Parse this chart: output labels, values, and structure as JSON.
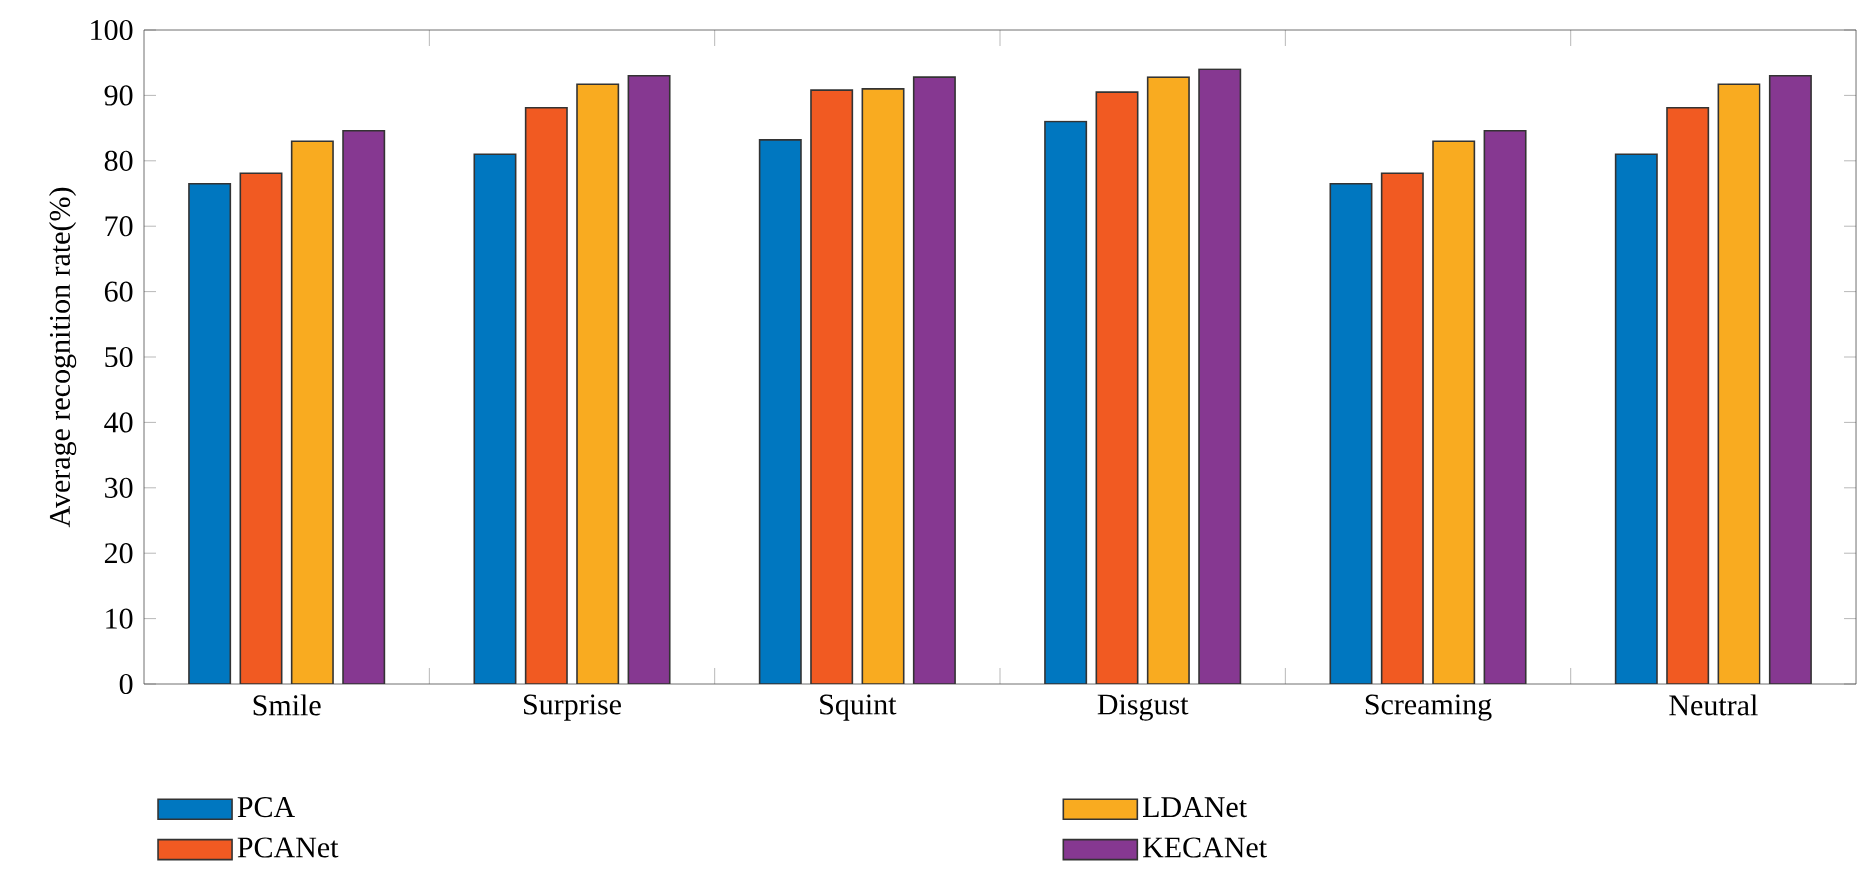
{
  "chart_data": {
    "type": "bar",
    "ylabel": "Average recognition rate(%)",
    "categories": [
      "Smile",
      "Surprise",
      "Squint",
      "Disgust",
      "Screaming",
      "Neutral"
    ],
    "series": [
      {
        "name": "PCA",
        "color": "#0077c0",
        "values": [
          76.5,
          81.0,
          83.2,
          86.0,
          76.5,
          81.0
        ]
      },
      {
        "name": "PCANet",
        "color": "#f15a22",
        "values": [
          78.1,
          88.1,
          90.8,
          90.5,
          78.1,
          88.1
        ]
      },
      {
        "name": "LDANet",
        "color": "#f9ab20",
        "values": [
          83.0,
          91.7,
          91.0,
          92.8,
          83.0,
          91.7
        ]
      },
      {
        "name": "KECANet",
        "color": "#863891",
        "values": [
          84.6,
          93.0,
          92.8,
          94.0,
          84.6,
          93.0
        ]
      }
    ],
    "ylim": [
      0,
      100
    ],
    "yticks": [
      0,
      10,
      20,
      30,
      40,
      50,
      60,
      70,
      80,
      90,
      100
    ],
    "grid": false,
    "legend": "bottom"
  }
}
